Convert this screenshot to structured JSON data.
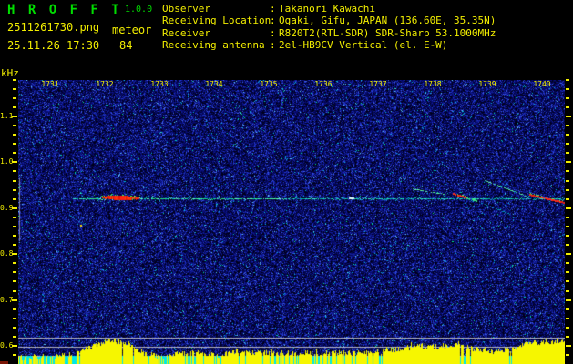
{
  "header": {
    "app_title": "H R O F F T",
    "version": "1.0.0",
    "filename": "2511261730.png",
    "mode": "meteor",
    "datetime": "25.11.26 17:30",
    "count": "84",
    "separator": ":",
    "info_rows": [
      {
        "label": "Observer",
        "value": "Takanori Kawachi"
      },
      {
        "label": "Receiving Location",
        "value": "Ogaki, Gifu, JAPAN (136.60E, 35.35N)"
      },
      {
        "label": "Receiver",
        "value": "R820T2(RTL-SDR) SDR-Sharp 53.1000MHz"
      },
      {
        "label": "Receiving antenna",
        "value": "2el-HB9CV Vertical (el. E-W)"
      }
    ]
  },
  "colors": {
    "title_green": "#00dd00",
    "text_yellow": "#f2ee00",
    "noise_blue": "#0a14a0",
    "carrier_cyan": "#20e8b0",
    "echo_red": "#ff2010",
    "level_yellow": "#f6f600",
    "level_cyan": "#00e8e8",
    "ref_gray": "#d2d2d2"
  },
  "chart_data": {
    "type": "heatmap",
    "title": "HROFFT radio meteor spectrogram 17:30-17:40",
    "ylabel": "kHz",
    "freq_tick_labels": [
      "1.1",
      "1.0",
      "0.9",
      "0.8",
      "0.7",
      "0.6"
    ],
    "time_tick_labels": [
      "1731",
      "1732",
      "1733",
      "1734",
      "1735",
      "1736",
      "1737",
      "1738",
      "1739",
      "1740"
    ],
    "ylim_khz": [
      0.58,
      1.18
    ],
    "minor_tick_khz": 0.02,
    "carrier_khz": 0.921,
    "carrier_t_sec": [
      60,
      600
    ],
    "events": [
      {
        "kind": "echo-blob",
        "t1": 92,
        "f1": 0.924,
        "t2": 132,
        "f2": 0.921,
        "color": "red"
      },
      {
        "kind": "bright-seg",
        "t1": 70,
        "f1": 0.921,
        "t2": 290,
        "f2": 0.921,
        "color": "green"
      },
      {
        "kind": "spot",
        "t1": 363,
        "f1": 0.921,
        "t2": 369,
        "f2": 0.921,
        "color": "white"
      },
      {
        "kind": "trail",
        "t1": 56,
        "f1": 0.886,
        "t2": 76,
        "f2": 0.86,
        "color": "cyan-faint"
      },
      {
        "kind": "trail",
        "t1": 432,
        "f1": 0.943,
        "t2": 468,
        "f2": 0.931,
        "color": "green"
      },
      {
        "kind": "trail",
        "t1": 512,
        "f1": 0.961,
        "t2": 557,
        "f2": 0.927,
        "color": "green"
      },
      {
        "kind": "trail",
        "t1": 477,
        "f1": 0.933,
        "t2": 503,
        "f2": 0.918,
        "color": "red"
      },
      {
        "kind": "trail",
        "t1": 503,
        "f1": 0.916,
        "t2": 540,
        "f2": 0.888,
        "color": "cyan-faint"
      },
      {
        "kind": "trail",
        "t1": 560,
        "f1": 0.931,
        "t2": 600,
        "f2": 0.914,
        "color": "red"
      }
    ],
    "reference_lines_y": [
      371,
      381,
      391
    ],
    "band_marker": {
      "f1": 0.965,
      "f2": 0.828
    },
    "level_profile_20s": [
      7,
      8,
      9,
      10,
      19,
      27,
      23,
      11,
      8,
      12,
      13,
      9,
      14,
      13,
      12,
      13,
      12,
      13,
      12,
      13,
      14,
      17,
      20,
      19,
      21,
      17,
      14,
      16,
      23,
      25
    ]
  }
}
